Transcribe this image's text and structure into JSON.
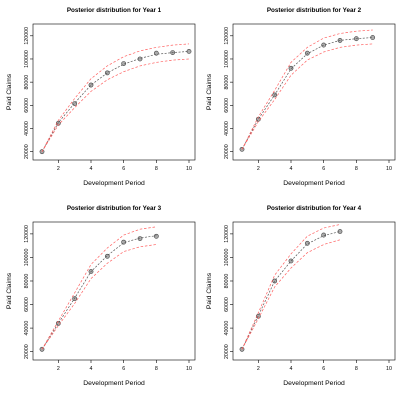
{
  "colors": {
    "observed_point_fill": "#aaaaaa",
    "observed_point_stroke": "#444444",
    "mean_line": "#555555",
    "interval_band": "#ff6060"
  },
  "chart_data": [
    {
      "type": "line",
      "title": "Posterior distribution for Year 1",
      "xlabel": "Development Period",
      "ylabel": "Paid Claims",
      "xlim": [
        1,
        10
      ],
      "ylim": [
        18000,
        125000
      ],
      "xticks": [
        2,
        4,
        6,
        8,
        10
      ],
      "yticks": [
        20000,
        40000,
        60000,
        80000,
        100000,
        120000
      ],
      "grid": false,
      "series": [
        {
          "role": "observed",
          "style": "points",
          "x": [
            1,
            2,
            3,
            4,
            5,
            6,
            7,
            8,
            9,
            10
          ],
          "y": [
            20000,
            44500,
            61500,
            77500,
            88000,
            96000,
            100000,
            105000,
            105500,
            106500
          ]
        },
        {
          "role": "mean",
          "style": "dashed",
          "x": [
            1,
            2,
            3,
            4,
            5,
            6,
            7,
            8,
            9,
            10
          ],
          "y": [
            20000,
            45000,
            62000,
            77500,
            88000,
            95500,
            100500,
            104000,
            105500,
            106500
          ]
        },
        {
          "role": "lower",
          "style": "dashed",
          "x": [
            1,
            2,
            3,
            4,
            5,
            6,
            7,
            8,
            9,
            10
          ],
          "y": [
            20000,
            43000,
            58000,
            72000,
            82000,
            89000,
            94000,
            97000,
            99000,
            100000
          ]
        },
        {
          "role": "upper",
          "style": "dashed",
          "x": [
            1,
            2,
            3,
            4,
            5,
            6,
            7,
            8,
            9,
            10
          ],
          "y": [
            20000,
            47000,
            66000,
            83000,
            94000,
            102000,
            107000,
            110000,
            112000,
            113000
          ]
        }
      ]
    },
    {
      "type": "line",
      "title": "Posterior distribution for Year 2",
      "xlabel": "Development Period",
      "ylabel": "Paid Claims",
      "xlim": [
        1,
        10
      ],
      "ylim": [
        18000,
        125000
      ],
      "xticks": [
        2,
        4,
        6,
        8,
        10
      ],
      "yticks": [
        20000,
        40000,
        60000,
        80000,
        100000,
        120000
      ],
      "grid": false,
      "series": [
        {
          "role": "observed",
          "style": "points",
          "x": [
            1,
            2,
            3,
            4,
            5,
            6,
            7,
            8,
            9
          ],
          "y": [
            22000,
            48000,
            69000,
            92000,
            105000,
            112000,
            116000,
            117500,
            118500
          ]
        },
        {
          "role": "mean",
          "style": "dashed",
          "x": [
            1,
            2,
            3,
            4,
            5,
            6,
            7,
            8,
            9
          ],
          "y": [
            22000,
            48000,
            69000,
            91500,
            104500,
            112000,
            116000,
            117500,
            118500
          ]
        },
        {
          "role": "lower",
          "style": "dashed",
          "x": [
            1,
            2,
            3,
            4,
            5,
            6,
            7,
            8,
            9
          ],
          "y": [
            22000,
            46000,
            65000,
            86000,
            99000,
            106000,
            110000,
            112000,
            113000
          ]
        },
        {
          "role": "upper",
          "style": "dashed",
          "x": [
            1,
            2,
            3,
            4,
            5,
            6,
            7,
            8,
            9
          ],
          "y": [
            22000,
            50000,
            73000,
            97000,
            110000,
            118000,
            122000,
            124000,
            125000
          ]
        }
      ]
    },
    {
      "type": "line",
      "title": "Posterior distribution for Year 3",
      "xlabel": "Development Period",
      "ylabel": "Paid Claims",
      "xlim": [
        1,
        10
      ],
      "ylim": [
        18000,
        125000
      ],
      "xticks": [
        2,
        4,
        6,
        8,
        10
      ],
      "yticks": [
        20000,
        40000,
        60000,
        80000,
        100000,
        120000
      ],
      "grid": false,
      "series": [
        {
          "role": "observed",
          "style": "points",
          "x": [
            1,
            2,
            3,
            4,
            5,
            6,
            7,
            8
          ],
          "y": [
            22000,
            44000,
            65000,
            88000,
            101000,
            113000,
            116000,
            118000
          ]
        },
        {
          "role": "mean",
          "style": "dashed",
          "x": [
            1,
            2,
            3,
            4,
            5,
            6,
            7,
            8
          ],
          "y": [
            22000,
            44000,
            65500,
            88000,
            101500,
            112500,
            116500,
            118500
          ]
        },
        {
          "role": "lower",
          "style": "dashed",
          "x": [
            1,
            2,
            3,
            4,
            5,
            6,
            7,
            8
          ],
          "y": [
            22000,
            42000,
            61000,
            82000,
            95000,
            105000,
            109000,
            111000
          ]
        },
        {
          "role": "upper",
          "style": "dashed",
          "x": [
            1,
            2,
            3,
            4,
            5,
            6,
            7,
            8
          ],
          "y": [
            22000,
            46000,
            70000,
            94000,
            108000,
            119000,
            124000,
            126000
          ]
        }
      ]
    },
    {
      "type": "line",
      "title": "Posterior distribution for Year 4",
      "xlabel": "Development Period",
      "ylabel": "Paid Claims",
      "xlim": [
        1,
        10
      ],
      "ylim": [
        18000,
        125000
      ],
      "xticks": [
        2,
        4,
        6,
        8,
        10
      ],
      "yticks": [
        20000,
        40000,
        60000,
        80000,
        100000,
        120000
      ],
      "grid": false,
      "series": [
        {
          "role": "observed",
          "style": "points",
          "x": [
            1,
            2,
            3,
            4,
            5,
            6,
            7
          ],
          "y": [
            22000,
            50000,
            80000,
            97000,
            112000,
            119000,
            122000
          ]
        },
        {
          "role": "mean",
          "style": "dashed",
          "x": [
            1,
            2,
            3,
            4,
            5,
            6,
            7
          ],
          "y": [
            22000,
            50500,
            80000,
            97000,
            111500,
            118500,
            122000
          ]
        },
        {
          "role": "lower",
          "style": "dashed",
          "x": [
            1,
            2,
            3,
            4,
            5,
            6,
            7
          ],
          "y": [
            22000,
            48000,
            75000,
            91000,
            104000,
            111000,
            115000
          ]
        },
        {
          "role": "upper",
          "style": "dashed",
          "x": [
            1,
            2,
            3,
            4,
            5,
            6,
            7
          ],
          "y": [
            22000,
            53000,
            85000,
            103000,
            118000,
            125000,
            128000
          ]
        }
      ]
    }
  ]
}
